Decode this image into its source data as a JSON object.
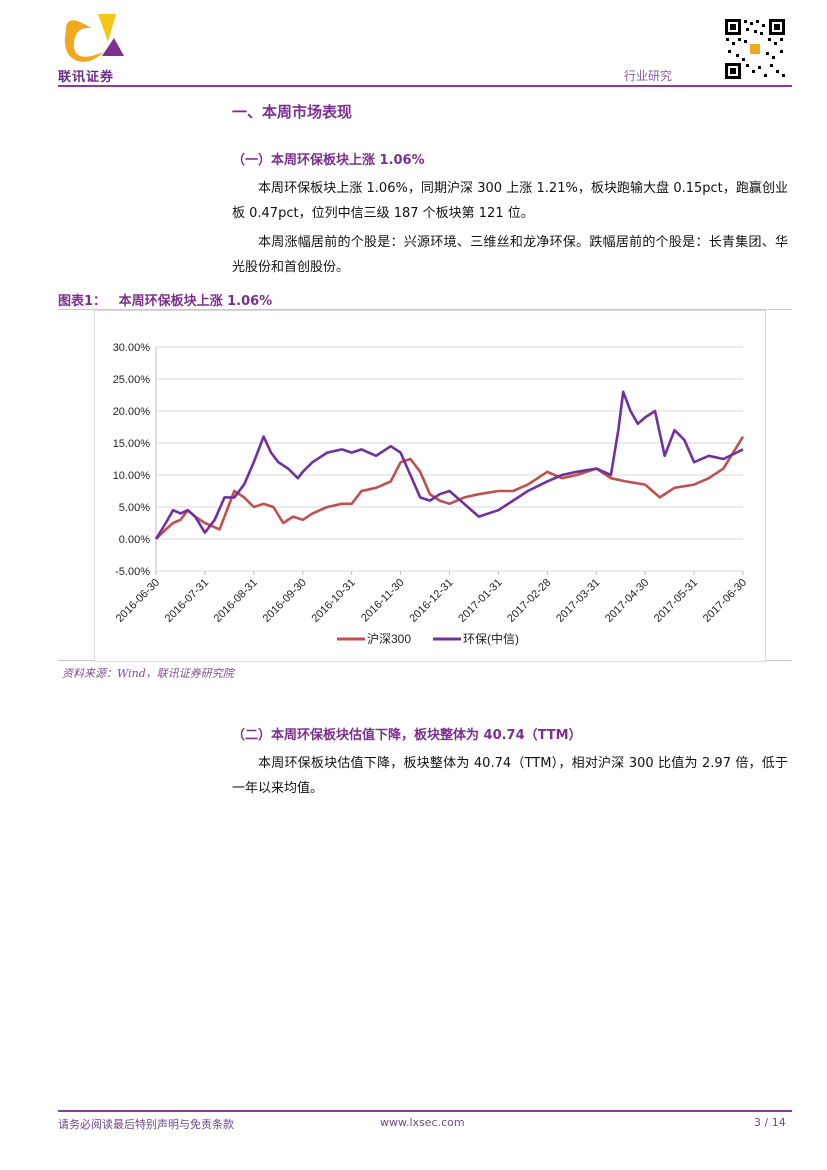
{
  "header": {
    "logo_text": "联讯证券",
    "category": "行业研究"
  },
  "section": {
    "title": "一、本周市场表现",
    "sub1": {
      "title": "（一）本周环保板块上涨 1.06%",
      "para1": "本周环保板块上涨 1.06%，同期沪深 300 上涨 1.21%，板块跑输大盘 0.15pct，跑赢创业板 0.47pct，位列中信三级 187 个板块第 121 位。",
      "para2": "本周涨幅居前的个股是：兴源环境、三维丝和龙净环保。跌幅居前的个股是：长青集团、华光股份和首创股份。"
    },
    "figure": {
      "label": "图表1：",
      "title": "本周环保板块上涨 1.06%",
      "source": "资料来源：Wind，联讯证券研究院"
    },
    "sub2": {
      "title": "（二）本周环保板块估值下降，板块整体为 40.74（TTM）",
      "para1": "本周环保板块估值下降，板块整体为 40.74（TTM），相对沪深 300 比值为 2.97 倍，低于一年以来均值。"
    }
  },
  "footer": {
    "disclaimer": "请务必阅读最后特别声明与免责条款",
    "url": "www.lxsec.com",
    "page": "3 / 14"
  },
  "chart_data": {
    "type": "line",
    "title": "",
    "xlabel": "",
    "ylabel": "",
    "ylim": [
      -0.05,
      0.3
    ],
    "y_ticks": [
      "30.00%",
      "25.00%",
      "20.00%",
      "15.00%",
      "10.00%",
      "5.00%",
      "0.00%",
      "-5.00%"
    ],
    "x_ticks": [
      "2016-06-30",
      "2016-07-31",
      "2016-08-31",
      "2016-09-30",
      "2016-10-31",
      "2016-11-30",
      "2016-12-31",
      "2017-01-31",
      "2017-02-28",
      "2017-03-31",
      "2017-04-30",
      "2017-05-31",
      "2017-06-30"
    ],
    "legend_position": "bottom",
    "series": [
      {
        "name": "沪深300",
        "color": "#c0504d",
        "x": [
          0,
          0.2,
          0.35,
          0.5,
          0.65,
          0.8,
          1,
          1.3,
          1.6,
          1.8,
          2,
          2.2,
          2.4,
          2.6,
          2.8,
          3,
          3.2,
          3.5,
          3.8,
          4,
          4.2,
          4.5,
          4.8,
          5,
          5.2,
          5.4,
          5.6,
          5.8,
          6,
          6.3,
          6.6,
          7,
          7.3,
          7.6,
          8,
          8.3,
          8.6,
          9,
          9.3,
          9.6,
          10,
          10.3,
          10.6,
          11,
          11.3,
          11.6,
          12
        ],
        "y": [
          0,
          0.015,
          0.025,
          0.03,
          0.045,
          0.035,
          0.025,
          0.015,
          0.075,
          0.065,
          0.05,
          0.055,
          0.05,
          0.025,
          0.035,
          0.03,
          0.04,
          0.05,
          0.055,
          0.055,
          0.075,
          0.08,
          0.09,
          0.12,
          0.125,
          0.105,
          0.07,
          0.06,
          0.055,
          0.065,
          0.07,
          0.075,
          0.075,
          0.085,
          0.105,
          0.095,
          0.1,
          0.11,
          0.095,
          0.09,
          0.085,
          0.065,
          0.08,
          0.085,
          0.095,
          0.11,
          0.16
        ]
      },
      {
        "name": "环保(中信)",
        "color": "#7030a0",
        "x": [
          0,
          0.2,
          0.35,
          0.5,
          0.65,
          0.8,
          1,
          1.2,
          1.4,
          1.6,
          1.8,
          2,
          2.2,
          2.35,
          2.5,
          2.7,
          2.9,
          3,
          3.2,
          3.5,
          3.8,
          4,
          4.2,
          4.5,
          4.8,
          5,
          5.2,
          5.4,
          5.6,
          5.8,
          6,
          6.3,
          6.6,
          7,
          7.3,
          7.6,
          8,
          8.3,
          8.6,
          9,
          9.3,
          9.45,
          9.55,
          9.7,
          9.85,
          10,
          10.2,
          10.4,
          10.6,
          10.8,
          11,
          11.3,
          11.6,
          12
        ],
        "y": [
          0,
          0.025,
          0.045,
          0.04,
          0.045,
          0.035,
          0.01,
          0.03,
          0.065,
          0.065,
          0.085,
          0.12,
          0.16,
          0.135,
          0.12,
          0.11,
          0.095,
          0.105,
          0.12,
          0.135,
          0.14,
          0.135,
          0.14,
          0.13,
          0.145,
          0.135,
          0.1,
          0.065,
          0.06,
          0.07,
          0.075,
          0.055,
          0.035,
          0.045,
          0.06,
          0.075,
          0.09,
          0.1,
          0.105,
          0.11,
          0.1,
          0.17,
          0.23,
          0.2,
          0.18,
          0.19,
          0.2,
          0.13,
          0.17,
          0.155,
          0.12,
          0.13,
          0.125,
          0.14
        ]
      }
    ]
  }
}
